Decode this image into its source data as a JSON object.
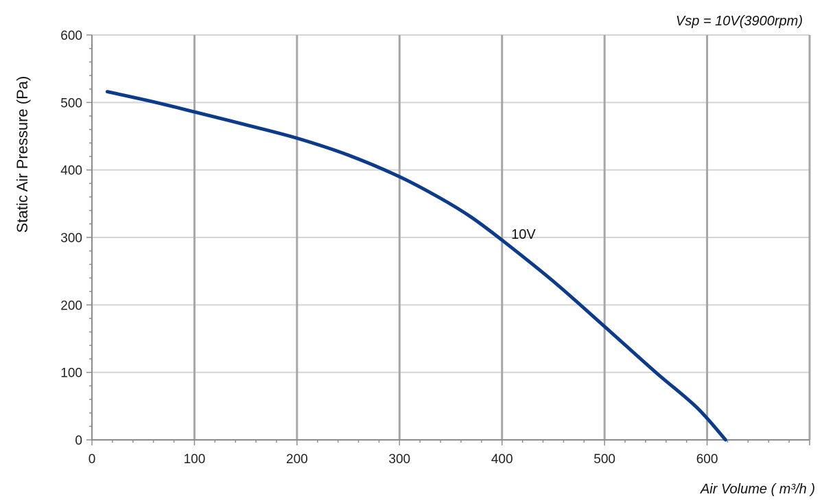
{
  "chart_data": {
    "type": "line",
    "title": "",
    "subtitle": "Vsp = 10V(3900rpm)",
    "xlabel": "Air Volume ( m³/h )",
    "ylabel": "Static Air Pressure  (Pa)",
    "xlim": [
      0,
      700
    ],
    "ylim": [
      0,
      600
    ],
    "x_ticks": [
      "0",
      "100",
      "200",
      "300",
      "400",
      "500",
      "600"
    ],
    "y_ticks": [
      "0",
      "100",
      "200",
      "300",
      "400",
      "500",
      "600"
    ],
    "grid": true,
    "legend": "none",
    "series": [
      {
        "name": "10V",
        "color": "#0d3b8c",
        "x": [
          15,
          60,
          100,
          150,
          200,
          250,
          300,
          340,
          370,
          400,
          450,
          500,
          550,
          590,
          618
        ],
        "y": [
          516,
          501,
          486,
          467,
          447,
          422,
          390,
          358,
          330,
          296,
          235,
          168,
          100,
          48,
          0
        ]
      }
    ],
    "annotations": [
      {
        "text": "10V",
        "x": 405,
        "y": 300
      }
    ]
  },
  "colors": {
    "grid_major_x": "#a6a6a6",
    "grid_y": "#d4d4d4",
    "axis": "#8c8c8c",
    "series": "#0d3b8c"
  }
}
